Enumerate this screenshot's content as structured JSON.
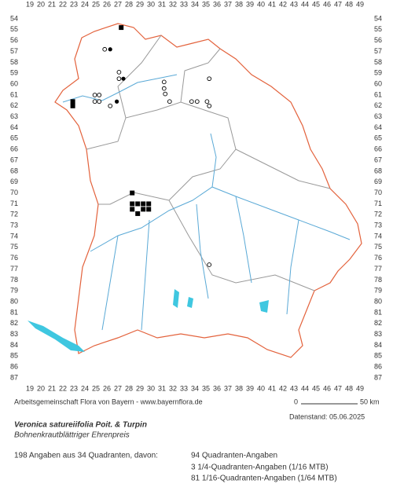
{
  "columns": [
    19,
    20,
    21,
    22,
    23,
    24,
    25,
    26,
    27,
    28,
    29,
    30,
    31,
    32,
    33,
    34,
    35,
    36,
    37,
    38,
    39,
    40,
    41,
    42,
    43,
    44,
    45,
    46,
    47,
    48,
    49
  ],
  "rows": [
    54,
    55,
    56,
    57,
    58,
    59,
    60,
    61,
    62,
    63,
    64,
    65,
    66,
    67,
    68,
    69,
    70,
    71,
    72,
    73,
    74,
    75,
    76,
    77,
    78,
    79,
    80,
    81,
    82,
    83,
    84,
    85,
    86,
    87
  ],
  "points": [
    {
      "x": 27.3,
      "y": 54.8,
      "kind": "square"
    },
    {
      "x": 25.8,
      "y": 56.8,
      "kind": "open"
    },
    {
      "x": 26.3,
      "y": 56.8,
      "kind": "dot"
    },
    {
      "x": 27.1,
      "y": 58.9,
      "kind": "open"
    },
    {
      "x": 27.1,
      "y": 59.5,
      "kind": "open"
    },
    {
      "x": 27.5,
      "y": 59.5,
      "kind": "dot"
    },
    {
      "x": 31.2,
      "y": 59.8,
      "kind": "open"
    },
    {
      "x": 31.2,
      "y": 60.4,
      "kind": "open"
    },
    {
      "x": 31.3,
      "y": 60.9,
      "kind": "open"
    },
    {
      "x": 31.7,
      "y": 61.6,
      "kind": "open"
    },
    {
      "x": 35.3,
      "y": 59.5,
      "kind": "open"
    },
    {
      "x": 33.7,
      "y": 61.6,
      "kind": "open"
    },
    {
      "x": 34.2,
      "y": 61.6,
      "kind": "open"
    },
    {
      "x": 35.1,
      "y": 61.6,
      "kind": "open"
    },
    {
      "x": 35.3,
      "y": 62.0,
      "kind": "open"
    },
    {
      "x": 24.9,
      "y": 61.0,
      "kind": "open"
    },
    {
      "x": 25.3,
      "y": 61.0,
      "kind": "open"
    },
    {
      "x": 24.9,
      "y": 61.6,
      "kind": "open"
    },
    {
      "x": 25.3,
      "y": 61.6,
      "kind": "open"
    },
    {
      "x": 22.9,
      "y": 61.6,
      "kind": "square"
    },
    {
      "x": 22.9,
      "y": 62.0,
      "kind": "square"
    },
    {
      "x": 26.9,
      "y": 61.6,
      "kind": "dot"
    },
    {
      "x": 26.3,
      "y": 62.0,
      "kind": "open"
    },
    {
      "x": 28.3,
      "y": 70.0,
      "kind": "square"
    },
    {
      "x": 28.3,
      "y": 71.0,
      "kind": "square"
    },
    {
      "x": 28.8,
      "y": 71.0,
      "kind": "square"
    },
    {
      "x": 29.3,
      "y": 71.0,
      "kind": "square"
    },
    {
      "x": 29.8,
      "y": 71.0,
      "kind": "square"
    },
    {
      "x": 28.3,
      "y": 71.5,
      "kind": "square"
    },
    {
      "x": 29.3,
      "y": 71.5,
      "kind": "square"
    },
    {
      "x": 29.8,
      "y": 71.5,
      "kind": "square"
    },
    {
      "x": 28.8,
      "y": 71.9,
      "kind": "square"
    },
    {
      "x": 35.3,
      "y": 76.6,
      "kind": "open"
    }
  ],
  "credit": "Arbeitsgemeinschaft Flora von Bayern - www.bayernflora.de",
  "scale": {
    "start": "0",
    "end": "50 km"
  },
  "date": "Datenstand: 05.06.2025",
  "title": "Veronica satureiifolia Poit. & Turpin",
  "subtitle": "Bohnenkrautblättriger Ehrenpreis",
  "summary": "198 Angaben aus 34 Quadranten, davon:",
  "breakdown": [
    "94 Quadranten-Angaben",
    "3 1/4-Quadranten-Angaben (1/16 MTB)",
    "81 1/16-Quadranten-Angaben (1/64 MTB)"
  ]
}
